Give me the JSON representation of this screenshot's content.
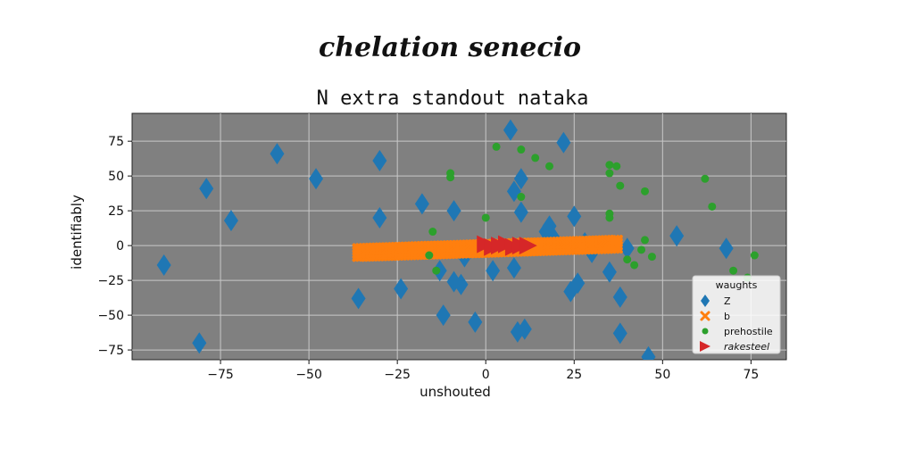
{
  "suptitle": "chelation senecio",
  "chart_data": {
    "type": "scatter",
    "title": "N extra standout nataka",
    "xlabel": "unshouted",
    "ylabel": "identifiably",
    "xlim": [
      -100,
      85
    ],
    "ylim": [
      -82,
      95
    ],
    "xticks": [
      -75,
      -50,
      -25,
      0,
      25,
      50,
      75
    ],
    "yticks": [
      -75,
      -50,
      -25,
      0,
      25,
      50,
      75
    ],
    "xtick_labels": [
      "−75",
      "−50",
      "−25",
      "0",
      "25",
      "50",
      "75"
    ],
    "ytick_labels": [
      "−75",
      "−50",
      "−25",
      "0",
      "25",
      "50",
      "75"
    ],
    "grid": true,
    "background": "#808080",
    "legend": {
      "title": "waughts",
      "placement": "lower-right",
      "entries": [
        "Z",
        "b",
        "prehostile",
        "rakesteel"
      ]
    },
    "series": [
      {
        "name": "Z",
        "marker": "diamond",
        "color": "#1f77b4",
        "points": [
          [
            -91,
            -14
          ],
          [
            -81,
            -70
          ],
          [
            -79,
            41
          ],
          [
            -72,
            18
          ],
          [
            -59,
            66
          ],
          [
            -48,
            48
          ],
          [
            -36,
            -38
          ],
          [
            -30,
            61
          ],
          [
            -30,
            20
          ],
          [
            -24,
            -31
          ],
          [
            -18,
            30
          ],
          [
            -13,
            -18
          ],
          [
            -12,
            -50
          ],
          [
            -9,
            25
          ],
          [
            -9,
            -26
          ],
          [
            -7,
            -28
          ],
          [
            -6,
            -8
          ],
          [
            -3,
            -55
          ],
          [
            2,
            -18
          ],
          [
            7,
            83
          ],
          [
            8,
            39
          ],
          [
            10,
            48
          ],
          [
            10,
            24
          ],
          [
            9,
            -62
          ],
          [
            11,
            -60
          ],
          [
            8,
            -16
          ],
          [
            18,
            14
          ],
          [
            19,
            6
          ],
          [
            22,
            74
          ],
          [
            24,
            -33
          ],
          [
            25,
            21
          ],
          [
            26,
            -27
          ],
          [
            28,
            2
          ],
          [
            30,
            -5
          ],
          [
            35,
            -19
          ],
          [
            38,
            -37
          ],
          [
            38,
            -63
          ],
          [
            40,
            -2
          ],
          [
            46,
            -80
          ],
          [
            54,
            7
          ],
          [
            68,
            -2
          ],
          [
            17,
            10
          ]
        ]
      },
      {
        "name": "b",
        "marker": "x",
        "color": "#ff7f0e",
        "line": {
          "x": [
            -36,
            37
          ],
          "y": [
            -5,
            1
          ]
        }
      },
      {
        "name": "prehostile",
        "marker": "circle",
        "color": "#2ca02c",
        "points": [
          [
            -16,
            -7
          ],
          [
            -15,
            10
          ],
          [
            -14,
            -18
          ],
          [
            -10,
            49
          ],
          [
            -10,
            52
          ],
          [
            0,
            20
          ],
          [
            3,
            71
          ],
          [
            10,
            35
          ],
          [
            10,
            69
          ],
          [
            14,
            63
          ],
          [
            18,
            57
          ],
          [
            35,
            58
          ],
          [
            35,
            52
          ],
          [
            35,
            23
          ],
          [
            35,
            20
          ],
          [
            37,
            57
          ],
          [
            38,
            43
          ],
          [
            40,
            -10
          ],
          [
            42,
            -14
          ],
          [
            44,
            -3
          ],
          [
            45,
            39
          ],
          [
            45,
            4
          ],
          [
            47,
            -8
          ],
          [
            62,
            48
          ],
          [
            64,
            28
          ],
          [
            70,
            -18
          ],
          [
            74,
            -23
          ],
          [
            76,
            -7
          ]
        ]
      },
      {
        "name": "rakesteel",
        "marker": "triangle-right",
        "color": "#d62728",
        "points": [
          [
            0,
            1
          ],
          [
            2,
            -1
          ],
          [
            4,
            0
          ],
          [
            6,
            1
          ],
          [
            8,
            -1
          ],
          [
            10,
            0
          ],
          [
            12,
            0
          ]
        ]
      }
    ]
  }
}
